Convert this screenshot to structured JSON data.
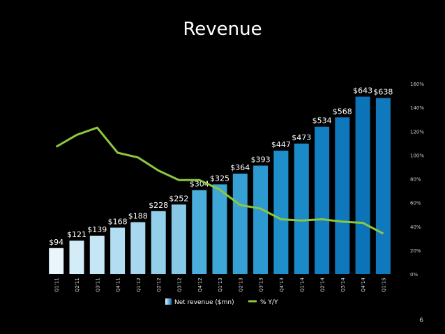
{
  "page_number": "6",
  "chart_data": {
    "type": "bar",
    "title": "Revenue",
    "categories": [
      "Q1'11",
      "Q2'11",
      "Q3'11",
      "Q4'11",
      "Q1'12",
      "Q2'12",
      "Q3'12",
      "Q4'12",
      "Q1'13",
      "Q2'13",
      "Q3'13",
      "Q4'13",
      "Q1'14",
      "Q2'14",
      "Q3'14",
      "Q4'14",
      "Q1'15"
    ],
    "series": [
      {
        "name": "Net revenue ($mn)",
        "type": "bar",
        "values": [
          94,
          121,
          139,
          168,
          188,
          228,
          252,
          304,
          325,
          364,
          393,
          447,
          473,
          534,
          568,
          643,
          638
        ],
        "labels": [
          "$94",
          "$121",
          "$139",
          "$168",
          "$188",
          "$228",
          "$252",
          "$304",
          "$325",
          "$364",
          "$393",
          "$447",
          "$473",
          "$534",
          "$568",
          "$643",
          "$638"
        ],
        "colors": [
          "#e9f5fb",
          "#d3ecf7",
          "#c5e6f4",
          "#b3ddf0",
          "#a6d7ee",
          "#94cfea",
          "#86c8e6",
          "#4aaddb",
          "#3fa6d8",
          "#36a0d5",
          "#2d99d1",
          "#1f8fcc",
          "#1a8ac9",
          "#137fc2",
          "#0f78bd",
          "#0c73b9",
          "#1079bd"
        ]
      },
      {
        "name": "% Y/Y",
        "type": "line",
        "color": "#8dc63f",
        "values": [
          107,
          117,
          123,
          102,
          98,
          87,
          79,
          79,
          71,
          58,
          55,
          46,
          45,
          46,
          44,
          43,
          34
        ]
      }
    ],
    "y_left_range": [
      0,
      690
    ],
    "y_right_ticks": [
      "0%",
      "20%",
      "40%",
      "60%",
      "80%",
      "100%",
      "120%",
      "140%",
      "160%"
    ],
    "y_right_range": [
      0,
      160
    ],
    "grid": false,
    "legend_position": "bottom"
  }
}
